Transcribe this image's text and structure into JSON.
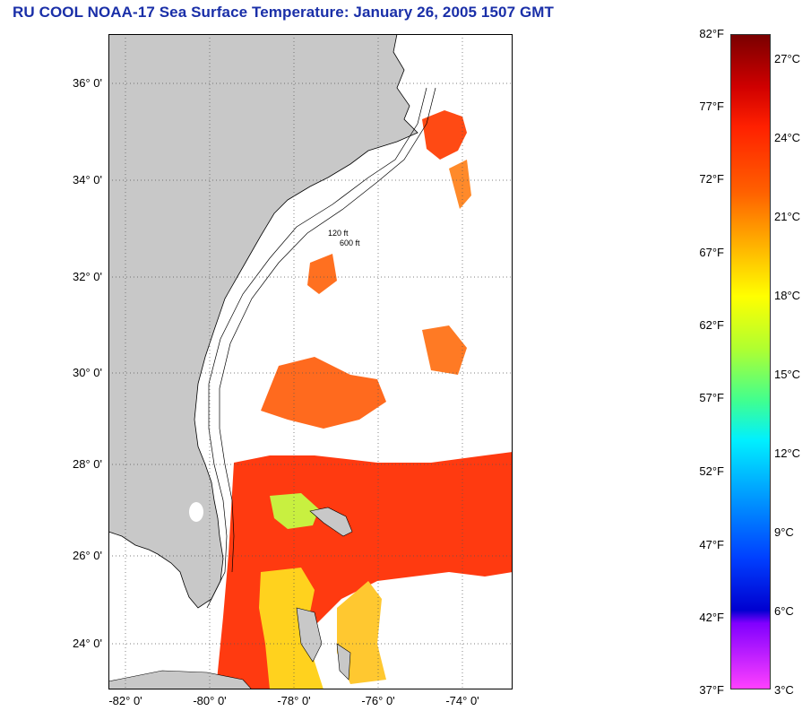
{
  "title": "RU COOL  NOAA-17  Sea Surface Temperature:  January 26, 2005 1507 GMT",
  "map": {
    "lat_labels": [
      "36° 0'",
      "34° 0'",
      "32° 0'",
      "30° 0'",
      "28° 0'",
      "26° 0'",
      "24° 0'"
    ],
    "lon_labels": [
      "-82° 0'",
      "-80° 0'",
      "-78° 0'",
      "-76° 0'",
      "-74° 0'"
    ],
    "contour_labels": [
      "120 ft",
      "600 ft"
    ],
    "colors": {
      "land": "#c8c8c8",
      "cloud": "#ffffff",
      "warm_water": "#ff3a10",
      "mid_water": "#ff7a20",
      "cool_water": "#ffd21e",
      "shelf_water": "#c8f040"
    }
  },
  "colorbar": {
    "fahrenheit_labels": [
      "82°F",
      "77°F",
      "72°F",
      "67°F",
      "62°F",
      "57°F",
      "52°F",
      "47°F",
      "42°F",
      "37°F"
    ],
    "celsius_labels": [
      "27°C",
      "24°C",
      "21°C",
      "18°C",
      "15°C",
      "12°C",
      "9°C",
      "6°C",
      "3°C"
    ],
    "range_f": [
      37,
      82
    ],
    "range_c": [
      3,
      28
    ]
  }
}
